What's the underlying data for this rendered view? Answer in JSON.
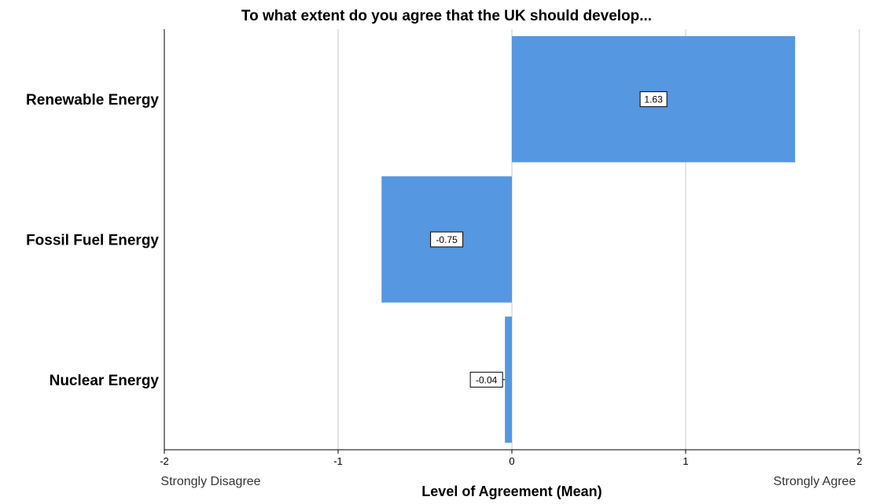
{
  "chart_data": {
    "type": "bar",
    "orientation": "horizontal",
    "title": "To what extent do you agree that the UK should develop...",
    "categories": [
      "Renewable Energy",
      "Fossil Fuel Energy",
      "Nuclear Energy"
    ],
    "values": [
      1.63,
      -0.75,
      -0.04
    ],
    "data_labels": [
      "1.63",
      "-0.75",
      "-0.04"
    ],
    "xlabel": "Level of Agreement (Mean)",
    "ylabel": "",
    "xlim": [
      -2,
      2
    ],
    "xticks": [
      -2,
      -1,
      0,
      1,
      2
    ],
    "xtick_labels": [
      "-2",
      "-1",
      "0",
      "1",
      "2"
    ],
    "x_end_labels": {
      "min": "Strongly Disagree",
      "max": "Strongly Agree"
    },
    "grid": true,
    "legend": "none",
    "colors": {
      "bar": "#5597e1",
      "gridline": "#c8c8c8",
      "axis": "#000000"
    }
  }
}
